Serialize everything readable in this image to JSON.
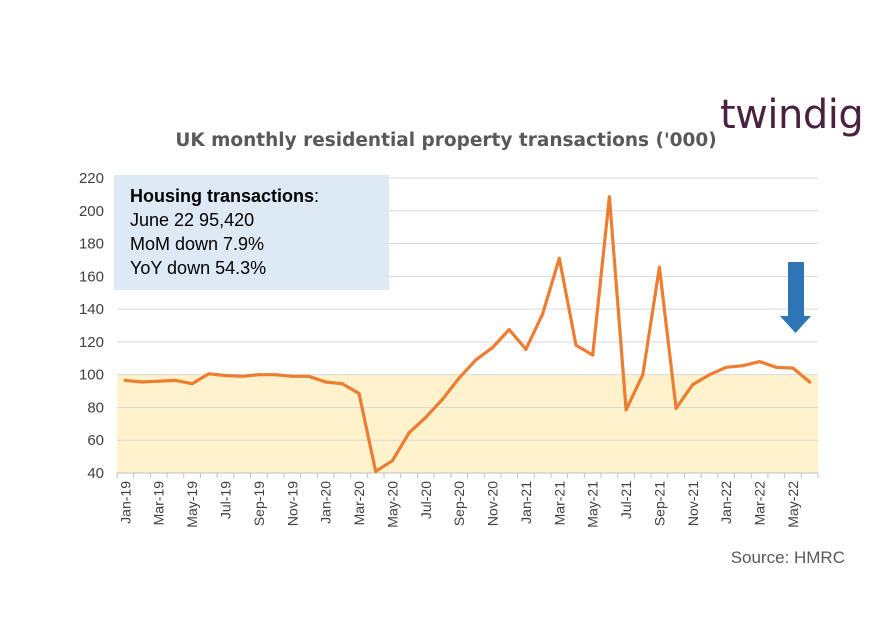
{
  "brand": {
    "logo_text": "twindig"
  },
  "chart_data": {
    "type": "line",
    "title": "UK monthly residential property transactions ('000)",
    "xlabel": "",
    "ylabel": "",
    "ylim": [
      40,
      220
    ],
    "yticks": [
      40,
      60,
      80,
      100,
      120,
      140,
      160,
      180,
      200,
      220
    ],
    "grid": true,
    "categories": [
      "Jan-19",
      "Feb-19",
      "Mar-19",
      "Apr-19",
      "May-19",
      "Jun-19",
      "Jul-19",
      "Aug-19",
      "Sep-19",
      "Oct-19",
      "Nov-19",
      "Dec-19",
      "Jan-20",
      "Feb-20",
      "Mar-20",
      "Apr-20",
      "May-20",
      "Jun-20",
      "Jul-20",
      "Aug-20",
      "Sep-20",
      "Oct-20",
      "Nov-20",
      "Dec-20",
      "Jan-21",
      "Feb-21",
      "Mar-21",
      "Apr-21",
      "May-21",
      "Jun-21",
      "Jul-21",
      "Aug-21",
      "Sep-21",
      "Oct-21",
      "Nov-21",
      "Dec-21",
      "Jan-22",
      "Feb-22",
      "Mar-22",
      "Apr-22",
      "May-22",
      "Jun-22"
    ],
    "tick_labels": [
      "Jan-19",
      "Mar-19",
      "May-19",
      "Jul-19",
      "Sep-19",
      "Nov-19",
      "Jan-20",
      "Mar-20",
      "May-20",
      "Jul-20",
      "Sep-20",
      "Nov-20",
      "Jan-21",
      "Mar-21",
      "May-21",
      "Jul-21",
      "Sep-21",
      "Nov-21",
      "Jan-22",
      "Mar-22",
      "May-22"
    ],
    "series": [
      {
        "values": [
          96.5,
          95.5,
          96,
          96.5,
          94.5,
          100.5,
          99.5,
          99,
          100,
          100,
          99,
          99,
          95.5,
          94.5,
          88.5,
          41,
          47.5,
          64.5,
          74,
          85,
          98,
          109,
          116.5,
          127.5,
          115.5,
          137,
          171,
          118,
          112,
          208.5,
          78.5,
          100,
          165.5,
          79.5,
          94,
          100,
          104.5,
          105.5,
          108,
          104.5,
          104,
          95.5
        ],
        "color": "#ed7d31"
      }
    ],
    "shaded_band": {
      "from": 40,
      "to": 100,
      "color": "#fff2cc"
    },
    "annotation": {
      "heading": "Housing transactions",
      "heading_suffix": ":",
      "lines": [
        "June 22 95,420",
        "MoM down 7.9%",
        "YoY down 54.3%"
      ],
      "background": "#dde9f5"
    },
    "arrow": {
      "color": "#2e75b6",
      "direction": "down"
    },
    "source": "Source: HMRC"
  }
}
